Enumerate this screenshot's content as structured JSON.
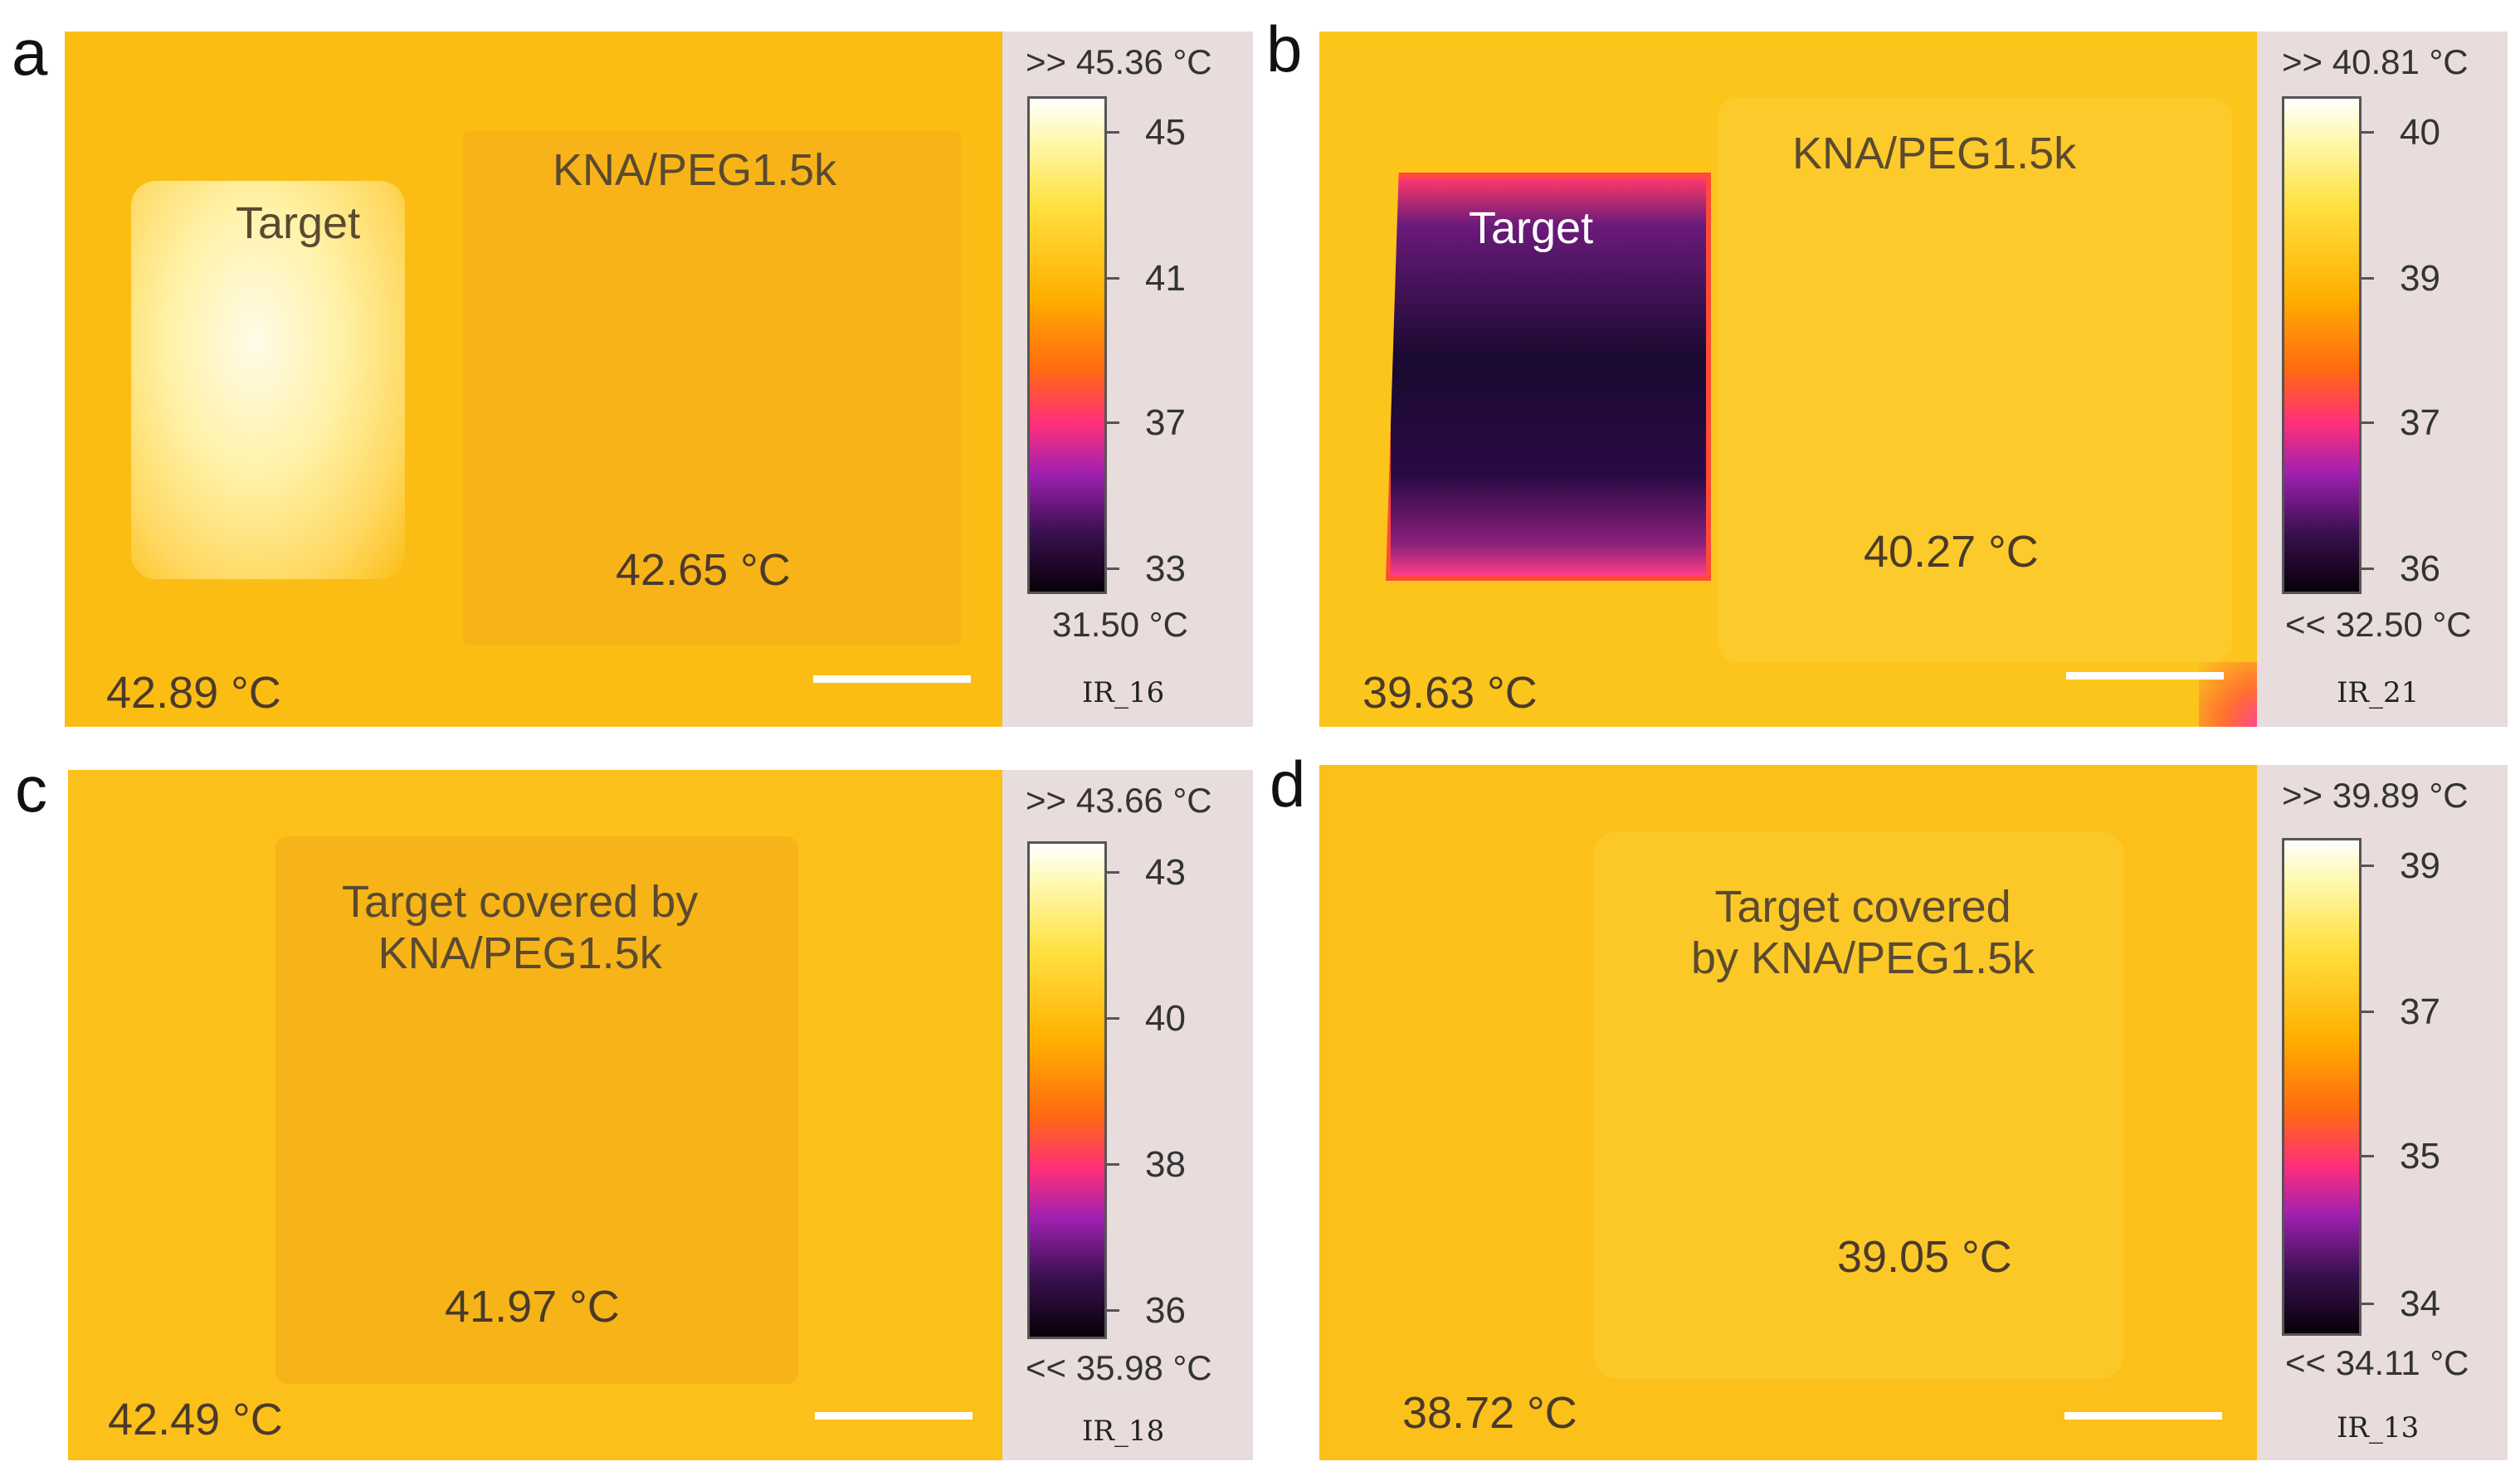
{
  "panels": {
    "a": {
      "letter": "a",
      "labels": {
        "target": "Target",
        "sample": "KNA/PEG1.5k"
      },
      "temps": {
        "sample": "42.65 °C",
        "corner": "42.89 °C"
      },
      "colorbar": {
        "max": ">> 45.36 °C",
        "min": "31.50 °C",
        "ticks": [
          "45",
          "41",
          "37",
          "33"
        ],
        "id": "IR_16"
      }
    },
    "b": {
      "letter": "b",
      "labels": {
        "target": "Target",
        "sample": "KNA/PEG1.5k"
      },
      "temps": {
        "sample": "40.27 °C",
        "corner": "39.63 °C"
      },
      "colorbar": {
        "max": ">> 40.81 °C",
        "min": "<< 32.50 °C",
        "ticks": [
          "40",
          "39",
          "37",
          "36"
        ],
        "id": "IR_21"
      }
    },
    "c": {
      "letter": "c",
      "labels": {
        "sample": "Target covered by\nKNA/PEG1.5k"
      },
      "temps": {
        "sample": "41.97 °C",
        "corner": "42.49 °C"
      },
      "colorbar": {
        "max": ">> 43.66 °C",
        "min": "<< 35.98 °C",
        "ticks": [
          "43",
          "40",
          "38",
          "36"
        ],
        "id": "IR_18"
      }
    },
    "d": {
      "letter": "d",
      "labels": {
        "sample": "Target covered\nby KNA/PEG1.5k"
      },
      "temps": {
        "sample": "39.05 °C",
        "corner": "38.72 °C"
      },
      "colorbar": {
        "max": ">> 39.89 °C",
        "min": "<< 34.11 °C",
        "ticks": [
          "39",
          "37",
          "35",
          "34"
        ],
        "id": "IR_13"
      }
    }
  },
  "colors": {
    "background": "#fbbd14",
    "hot": "#fff6d0",
    "cold": "#1a0a30",
    "scalebar": "#ffffff"
  }
}
